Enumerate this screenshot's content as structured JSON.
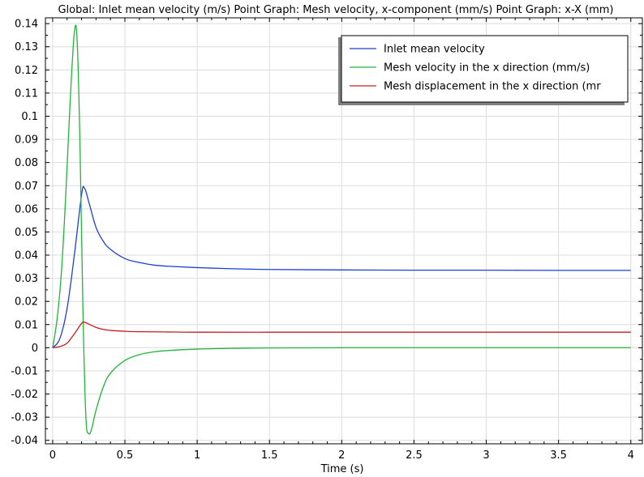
{
  "chart_data": {
    "type": "line",
    "title": "Global: Inlet mean velocity (m/s)  Point Graph: Mesh velocity, x-component (mm/s)  Point Graph: x-X (mm)",
    "xlabel": "Time (s)",
    "ylabel": "",
    "xlim": [
      -0.05,
      4.08
    ],
    "ylim": [
      -0.0415,
      0.1425
    ],
    "x_ticks": [
      "0",
      "0.5",
      "1",
      "1.5",
      "2",
      "2.5",
      "3",
      "3.5",
      "4"
    ],
    "y_ticks": [
      "0.14",
      "0.13",
      "0.12",
      "0.11",
      "0.1",
      "0.09",
      "0.08",
      "0.07",
      "0.06",
      "0.05",
      "0.04",
      "0.03",
      "0.02",
      "0.01",
      "0",
      "-0.01",
      "-0.02",
      "-0.03",
      "-0.04"
    ],
    "grid": true,
    "legend_position": "top-right",
    "series": [
      {
        "name": "Inlet mean velocity",
        "color": "#1f3fd6",
        "x": [
          0,
          0.05,
          0.1,
          0.15,
          0.2,
          0.22,
          0.25,
          0.3,
          0.35,
          0.4,
          0.5,
          0.6,
          0.7,
          0.8,
          1.0,
          1.2,
          1.5,
          2.0,
          2.5,
          3.0,
          3.5,
          4.0
        ],
        "y": [
          0,
          0.004,
          0.017,
          0.04,
          0.066,
          0.069,
          0.063,
          0.052,
          0.046,
          0.0425,
          0.0385,
          0.0368,
          0.0357,
          0.0352,
          0.0346,
          0.0342,
          0.0338,
          0.0336,
          0.0335,
          0.0335,
          0.0334,
          0.0334
        ]
      },
      {
        "name": "Mesh velocity in the x direction (mm/s)",
        "color": "#22b33a",
        "x": [
          0,
          0.03,
          0.06,
          0.09,
          0.12,
          0.15,
          0.17,
          0.19,
          0.21,
          0.23,
          0.25,
          0.27,
          0.3,
          0.35,
          0.4,
          0.5,
          0.6,
          0.7,
          0.8,
          1.0,
          1.2,
          1.5,
          2.0,
          2.5,
          3.0,
          3.5,
          4.0
        ],
        "y": [
          0,
          0.012,
          0.032,
          0.065,
          0.105,
          0.136,
          0.132,
          0.085,
          0.015,
          -0.03,
          -0.037,
          -0.035,
          -0.027,
          -0.017,
          -0.011,
          -0.0055,
          -0.003,
          -0.0018,
          -0.0012,
          -0.0006,
          -0.0003,
          -0.0001,
          0,
          0,
          0,
          0,
          0
        ]
      },
      {
        "name": "Mesh displacement in the x direction (mm)",
        "legend_label": "Mesh displacement in the x direction (mr",
        "color": "#c91d1d",
        "x": [
          0,
          0.05,
          0.1,
          0.15,
          0.2,
          0.22,
          0.25,
          0.3,
          0.35,
          0.4,
          0.5,
          0.6,
          0.8,
          1.0,
          1.5,
          2.0,
          2.5,
          3.0,
          3.5,
          4.0
        ],
        "y": [
          0,
          0.0005,
          0.002,
          0.006,
          0.0105,
          0.011,
          0.0102,
          0.0088,
          0.0079,
          0.0075,
          0.0071,
          0.0069,
          0.0068,
          0.0067,
          0.0067,
          0.0067,
          0.0067,
          0.0067,
          0.0067,
          0.0067
        ]
      }
    ]
  }
}
